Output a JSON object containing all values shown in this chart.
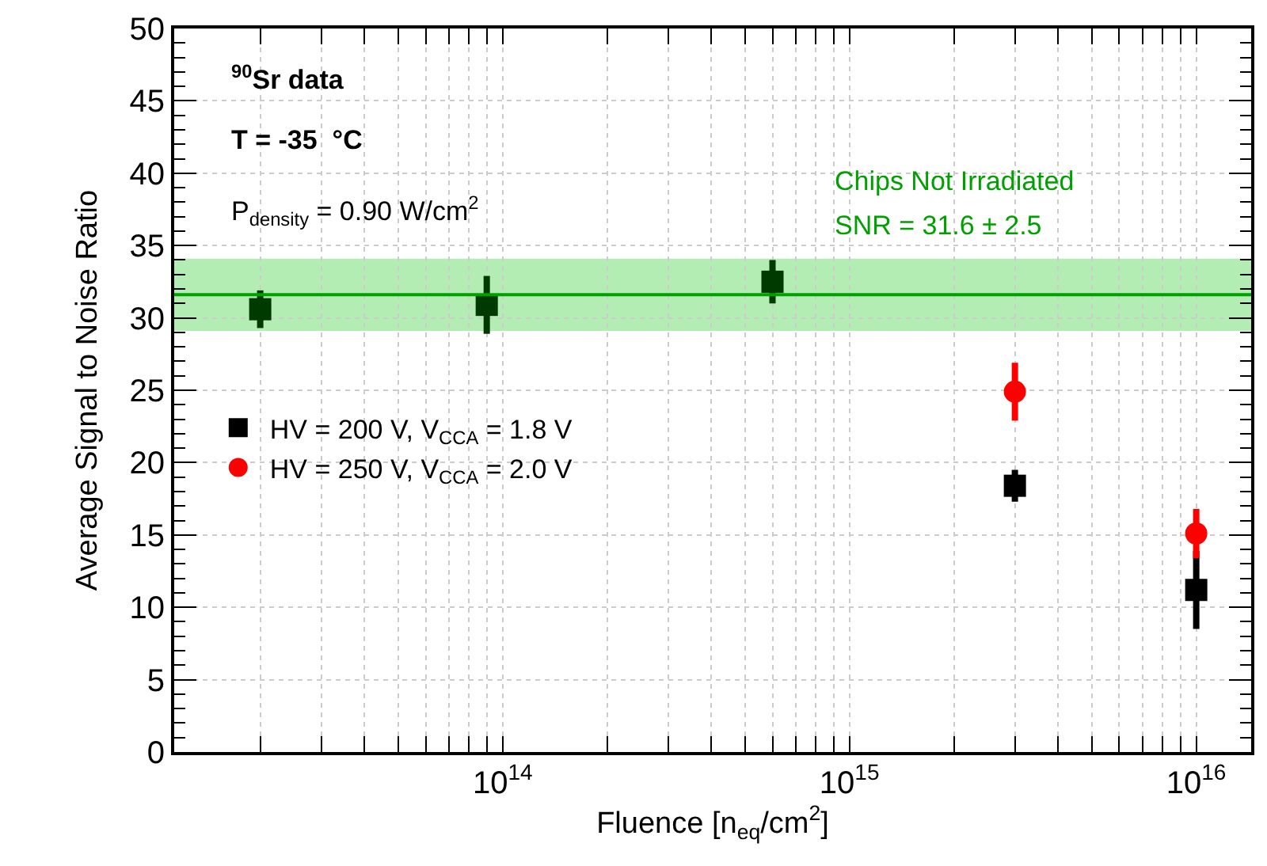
{
  "chart_data": {
    "type": "scatter",
    "xlabel": "Fluence [n$_{eq}$/cm$^{2}$]",
    "ylabel": "Average Signal to Noise Ratio",
    "annotations": [
      "$^{90}$Sr data",
      "T = -35  °C",
      "P$_{density}$ = 0.90 W/cm$^{2}$"
    ],
    "log": "x",
    "grid": true,
    "legend": "left",
    "xlim": [
      11300000000000.0,
      1.44e+16
    ],
    "ylim": [
      0,
      50
    ],
    "xticks": [
      {
        "value": 20000000000000.0,
        "label": null
      },
      {
        "value": 30000000000000.0,
        "label": null
      },
      {
        "value": 40000000000000.0,
        "label": null
      },
      {
        "value": 50000000000000.0,
        "label": null
      },
      {
        "value": 60000000000000.0,
        "label": null
      },
      {
        "value": 70000000000000.0,
        "label": null
      },
      {
        "value": 80000000000000.0,
        "label": null
      },
      {
        "value": 90000000000000.0,
        "label": null
      },
      {
        "value": 100000000000000.0,
        "label": "10$^{14}$"
      },
      {
        "value": 200000000000000.0,
        "label": null
      },
      {
        "value": 300000000000000.0,
        "label": null
      },
      {
        "value": 400000000000000.0,
        "label": null
      },
      {
        "value": 500000000000000.0,
        "label": null
      },
      {
        "value": 600000000000000.0,
        "label": null
      },
      {
        "value": 700000000000000.0,
        "label": null
      },
      {
        "value": 800000000000000.0,
        "label": null
      },
      {
        "value": 900000000000000.0,
        "label": null
      },
      {
        "value": 1000000000000000.0,
        "label": "10$^{15}$"
      },
      {
        "value": 2000000000000000.0,
        "label": null
      },
      {
        "value": 3000000000000000.0,
        "label": null
      },
      {
        "value": 4000000000000000.0,
        "label": null
      },
      {
        "value": 5000000000000000.0,
        "label": null
      },
      {
        "value": 6000000000000000.0,
        "label": null
      },
      {
        "value": 7000000000000000.0,
        "label": null
      },
      {
        "value": 8000000000000000.0,
        "label": null
      },
      {
        "value": 9000000000000000.0,
        "label": null
      },
      {
        "value": 1e+16,
        "label": "10$^{16}$"
      }
    ],
    "yticks": [
      0,
      5,
      10,
      15,
      20,
      25,
      30,
      35,
      40,
      45,
      50
    ],
    "ref_lines": [
      {
        "axis": "y",
        "value": 31.6,
        "label": "Chips Not Irradiated",
        "color": "#00a000"
      }
    ],
    "bands": [
      {
        "axis": "y",
        "from": 29.1,
        "to": 34.1,
        "label": "SNR = 31.6 ± 2.5",
        "color": "#b3edb3"
      }
    ],
    "series": [
      {
        "color": "#003a00",
        "marker": "square",
        "x": [
          20000000000000.0,
          90000000000000.0,
          600000000000000.0
        ],
        "values": [
          30.6,
          30.9,
          32.5
        ],
        "errors": [
          1.3,
          2,
          1.5
        ]
      },
      {
        "name": "HV = 200 V, V$_{CCA}$ = 1.8 V",
        "color": "#000000",
        "marker": "square",
        "x": [
          3000000000000000.0,
          1e+16
        ],
        "values": [
          18.4,
          11.2
        ],
        "errors": [
          1.1,
          2.7
        ]
      },
      {
        "name": "HV = 250 V, V$_{CCA}$ = 2.0 V",
        "color": "#ff0000",
        "marker": "circle",
        "x": [
          3000000000000000.0,
          1e+16
        ],
        "values": [
          24.9,
          15.1
        ],
        "errors": [
          2,
          1.7
        ]
      }
    ]
  }
}
